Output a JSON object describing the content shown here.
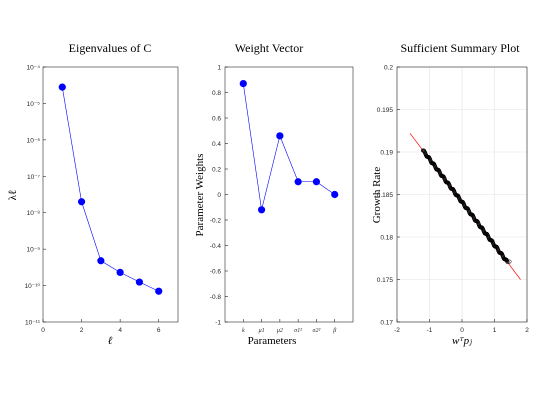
{
  "figure": {
    "panels": [
      {
        "title": "Eigenvalues of C",
        "xlabel": "ℓ",
        "ylabel": "λℓ"
      },
      {
        "title": "Weight Vector",
        "xlabel": "Parameters",
        "ylabel": "Parameter Weights"
      },
      {
        "title": "Sufficient Summary Plot",
        "xlabel": "wᵀpⱼ",
        "ylabel": "Growth Rate"
      }
    ]
  },
  "chart_data": [
    {
      "type": "line",
      "title": "Eigenvalues of C",
      "xlabel": "ℓ",
      "ylabel": "λℓ",
      "yscale": "log",
      "xlim": [
        0,
        7
      ],
      "ylim": [
        1e-11,
        0.0001
      ],
      "xticks": [
        "0",
        "2",
        "4",
        "6"
      ],
      "yticks": [
        "10⁻¹¹",
        "10⁻¹⁰",
        "10⁻⁹",
        "10⁻⁸",
        "10⁻⁷",
        "10⁻⁶",
        "10⁻⁵",
        "10⁻⁴"
      ],
      "grid": false,
      "x": [
        1,
        2,
        3,
        4,
        5,
        6
      ],
      "y": [
        2.8e-05,
        2e-08,
        4.8e-10,
        2.3e-10,
        1.25e-10,
        7e-11
      ],
      "colors": {
        "line": "#0000ff",
        "marker": "#0000ff"
      }
    },
    {
      "type": "line",
      "title": "Weight Vector",
      "xlabel": "Parameters",
      "ylabel": "Parameter Weights",
      "ylim": [
        -1,
        1
      ],
      "yticks": [
        "-1",
        "-0.8",
        "-0.6",
        "-0.4",
        "-0.2",
        "0",
        "0.2",
        "0.4",
        "0.6",
        "0.8",
        "1"
      ],
      "categories": [
        "k",
        "μ1",
        "μ2",
        "σ1²",
        "σ2²",
        "β"
      ],
      "values": [
        0.87,
        -0.12,
        0.46,
        0.1,
        0.1,
        0.0
      ],
      "grid": false,
      "colors": {
        "line": "#0000ff",
        "marker": "#0000ff"
      }
    },
    {
      "type": "scatter",
      "title": "Sufficient Summary Plot",
      "xlabel": "wᵀpⱼ",
      "ylabel": "Growth Rate",
      "xlim": [
        -2,
        2
      ],
      "ylim": [
        0.17,
        0.2
      ],
      "xticks": [
        "-2",
        "-1",
        "0",
        "1",
        "2"
      ],
      "yticks": [
        "0.17",
        "0.175",
        "0.18",
        "0.185",
        "0.19",
        "0.195",
        "0.2"
      ],
      "grid": true,
      "fit_line": {
        "x": [
          -1.6,
          1.8
        ],
        "y": [
          0.1922,
          0.175
        ]
      },
      "points_x_range": [
        -1.2,
        1.4
      ],
      "outlier_points": [
        {
          "x": 1.46,
          "y": 0.1771
        }
      ],
      "point_count": 260,
      "colors": {
        "fit": "#ff0000",
        "points": "#000000"
      }
    }
  ]
}
